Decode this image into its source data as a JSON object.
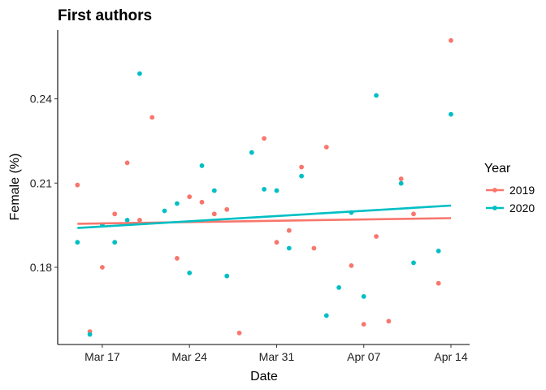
{
  "chart_data": {
    "type": "scatter",
    "title": "First authors",
    "xlabel": "Date",
    "ylabel": "Female (%)",
    "x_ticks": [
      "Mar 17",
      "Mar 24",
      "Mar 31",
      "Apr 07",
      "Apr 14"
    ],
    "x_tick_values": [
      "2020-03-17",
      "2020-03-24",
      "2020-03-31",
      "2020-04-07",
      "2020-04-14"
    ],
    "y_ticks": [
      "0.18",
      "0.21",
      "0.24"
    ],
    "y_tick_values": [
      0.18,
      0.21,
      0.24
    ],
    "xlim": [
      "2020-03-13T10:00",
      "2020-04-15T12:00"
    ],
    "ylim": [
      0.1525,
      0.2645
    ],
    "legend": {
      "title": "Year",
      "position": "right"
    },
    "grid": false,
    "series": [
      {
        "name": "2019",
        "color": "#F8766D",
        "points": [
          {
            "x": "2020-03-15",
            "y": 0.2093
          },
          {
            "x": "2020-03-16",
            "y": 0.1571
          },
          {
            "x": "2020-03-17",
            "y": 0.18
          },
          {
            "x": "2020-03-18",
            "y": 0.199
          },
          {
            "x": "2020-03-19",
            "y": 0.2172
          },
          {
            "x": "2020-03-20",
            "y": 0.1968
          },
          {
            "x": "2020-03-21",
            "y": 0.2334
          },
          {
            "x": "2020-03-23",
            "y": 0.1832
          },
          {
            "x": "2020-03-24",
            "y": 0.2051
          },
          {
            "x": "2020-03-25",
            "y": 0.2032
          },
          {
            "x": "2020-03-26",
            "y": 0.199
          },
          {
            "x": "2020-03-27",
            "y": 0.2006
          },
          {
            "x": "2020-03-28",
            "y": 0.1566
          },
          {
            "x": "2020-03-30",
            "y": 0.2259
          },
          {
            "x": "2020-03-31",
            "y": 0.1889
          },
          {
            "x": "2020-04-01",
            "y": 0.1931
          },
          {
            "x": "2020-04-02",
            "y": 0.2157
          },
          {
            "x": "2020-04-03",
            "y": 0.1868
          },
          {
            "x": "2020-04-04",
            "y": 0.2228
          },
          {
            "x": "2020-04-06",
            "y": 0.1806
          },
          {
            "x": "2020-04-07",
            "y": 0.1597
          },
          {
            "x": "2020-04-08",
            "y": 0.191
          },
          {
            "x": "2020-04-09",
            "y": 0.1608
          },
          {
            "x": "2020-04-10",
            "y": 0.2115
          },
          {
            "x": "2020-04-11",
            "y": 0.199
          },
          {
            "x": "2020-04-13",
            "y": 0.1743
          },
          {
            "x": "2020-04-14",
            "y": 0.2608
          }
        ],
        "trend": {
          "x": [
            "2020-03-15",
            "2020-04-14"
          ],
          "y": [
            0.1955,
            0.1975
          ]
        }
      },
      {
        "name": "2020",
        "color": "#00BFC4",
        "points": [
          {
            "x": "2020-03-15",
            "y": 0.1889
          },
          {
            "x": "2020-03-16",
            "y": 0.1561
          },
          {
            "x": "2020-03-17",
            "y": 0.1952
          },
          {
            "x": "2020-03-18",
            "y": 0.1889
          },
          {
            "x": "2020-03-19",
            "y": 0.1968
          },
          {
            "x": "2020-03-20",
            "y": 0.249
          },
          {
            "x": "2020-03-22",
            "y": 0.2001
          },
          {
            "x": "2020-03-23",
            "y": 0.2027
          },
          {
            "x": "2020-03-24",
            "y": 0.178
          },
          {
            "x": "2020-03-25",
            "y": 0.2162
          },
          {
            "x": "2020-03-26",
            "y": 0.2073
          },
          {
            "x": "2020-03-27",
            "y": 0.1769
          },
          {
            "x": "2020-03-29",
            "y": 0.2209
          },
          {
            "x": "2020-03-30",
            "y": 0.2078
          },
          {
            "x": "2020-03-31",
            "y": 0.2073
          },
          {
            "x": "2020-04-01",
            "y": 0.1868
          },
          {
            "x": "2020-04-02",
            "y": 0.2125
          },
          {
            "x": "2020-04-04",
            "y": 0.1628
          },
          {
            "x": "2020-04-05",
            "y": 0.1728
          },
          {
            "x": "2020-04-06",
            "y": 0.1995
          },
          {
            "x": "2020-04-07",
            "y": 0.1696
          },
          {
            "x": "2020-04-08",
            "y": 0.2412
          },
          {
            "x": "2020-04-10",
            "y": 0.2099
          },
          {
            "x": "2020-04-11",
            "y": 0.1816
          },
          {
            "x": "2020-04-13",
            "y": 0.1858
          },
          {
            "x": "2020-04-14",
            "y": 0.2345
          }
        ],
        "trend": {
          "x": [
            "2020-03-15",
            "2020-04-14"
          ],
          "y": [
            0.194,
            0.202
          ]
        }
      }
    ]
  }
}
